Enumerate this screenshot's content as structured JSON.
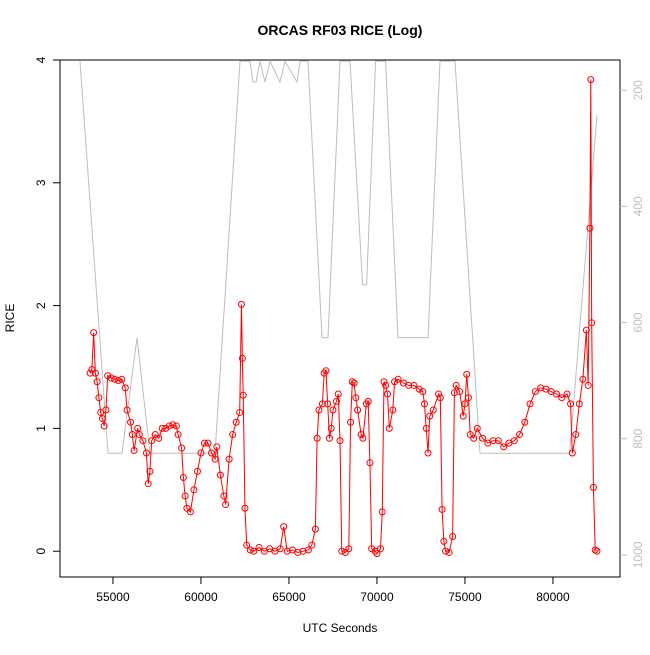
{
  "chart_data": {
    "type": "line",
    "title": "ORCAS RF03 RICE (Log)",
    "xlabel": "UTC Seconds",
    "ylabel": "RICE",
    "xlim": [
      51990,
      83810
    ],
    "ylim": [
      -0.21,
      4.0
    ],
    "y2lim": [
      1038,
      148
    ],
    "xticks": [
      55000,
      60000,
      65000,
      70000,
      75000,
      80000
    ],
    "yticks": [
      0,
      1,
      2,
      3,
      4
    ],
    "y2ticks": [
      200,
      400,
      600,
      800,
      1000
    ],
    "series": [
      {
        "color": "#ff0000",
        "marker": "circle",
        "x": [
          53700,
          53800,
          53900,
          54000,
          54100,
          54200,
          54300,
          54400,
          54500,
          54600,
          54700,
          54900,
          55100,
          55300,
          55500,
          55700,
          55800,
          56000,
          56100,
          56200,
          56400,
          56500,
          56700,
          56900,
          57000,
          57100,
          57200,
          57400,
          57600,
          57800,
          58000,
          58200,
          58400,
          58600,
          58700,
          58900,
          59000,
          59100,
          59200,
          59400,
          59600,
          59800,
          60000,
          60200,
          60400,
          60600,
          60800,
          60900,
          61100,
          61300,
          61400,
          61600,
          61800,
          62000,
          62200,
          62300,
          62350,
          62400,
          62500,
          62600,
          62800,
          63000,
          63300,
          63600,
          63900,
          64200,
          64500,
          64700,
          64900,
          65200,
          65500,
          65800,
          66100,
          66300,
          66500,
          66600,
          66700,
          66900,
          67000,
          67100,
          67200,
          67300,
          67400,
          67500,
          67700,
          67800,
          67900,
          68000,
          68200,
          68400,
          68500,
          68600,
          68700,
          68800,
          68900,
          69100,
          69200,
          69400,
          69500,
          69600,
          69700,
          69900,
          70000,
          70200,
          70300,
          70400,
          70500,
          70600,
          70700,
          70900,
          71000,
          71200,
          71500,
          71800,
          72100,
          72400,
          72600,
          72700,
          72800,
          72900,
          73000,
          73200,
          73500,
          73600,
          73700,
          73800,
          73900,
          74100,
          74300,
          74400,
          74500,
          74700,
          74900,
          75000,
          75100,
          75200,
          75300,
          75500,
          75700,
          76000,
          76300,
          76600,
          76900,
          77200,
          77500,
          77800,
          78100,
          78400,
          78700,
          79000,
          79300,
          79600,
          79900,
          80200,
          80500,
          80800,
          81000,
          81100,
          81300,
          81500,
          81700,
          81900,
          82000,
          82100,
          82150,
          82200,
          82300,
          82400,
          82500
        ],
        "values": [
          1.45,
          1.48,
          1.78,
          1.45,
          1.38,
          1.25,
          1.13,
          1.08,
          1.02,
          1.15,
          1.43,
          1.41,
          1.4,
          1.39,
          1.4,
          1.33,
          1.15,
          1.05,
          0.95,
          0.82,
          1.0,
          0.95,
          0.9,
          0.8,
          0.55,
          0.65,
          0.9,
          0.95,
          0.92,
          1.0,
          1.0,
          1.02,
          1.03,
          1.02,
          0.95,
          0.84,
          0.6,
          0.45,
          0.35,
          0.32,
          0.5,
          0.65,
          0.8,
          0.88,
          0.88,
          0.8,
          0.75,
          0.85,
          0.62,
          0.45,
          0.38,
          0.75,
          0.95,
          1.05,
          1.13,
          2.01,
          1.57,
          1.27,
          0.35,
          0.05,
          0.01,
          0.0,
          0.03,
          0.0,
          0.02,
          0.0,
          0.02,
          0.2,
          0.0,
          0.01,
          -0.01,
          0.0,
          0.01,
          0.05,
          0.18,
          0.92,
          1.15,
          1.2,
          1.45,
          1.47,
          1.2,
          0.92,
          1.0,
          1.15,
          1.22,
          1.28,
          0.9,
          0.0,
          -0.01,
          0.02,
          1.05,
          1.38,
          1.37,
          1.25,
          1.15,
          0.95,
          0.92,
          1.2,
          1.22,
          0.72,
          0.02,
          0.0,
          -0.02,
          0.02,
          0.32,
          1.38,
          1.35,
          1.28,
          1.0,
          1.15,
          1.38,
          1.4,
          1.37,
          1.35,
          1.35,
          1.32,
          1.3,
          1.2,
          1.0,
          0.8,
          1.1,
          1.15,
          1.28,
          1.25,
          0.34,
          0.08,
          0.0,
          -0.01,
          0.12,
          1.29,
          1.35,
          1.3,
          1.1,
          1.2,
          1.44,
          1.25,
          0.95,
          0.92,
          1.0,
          0.92,
          0.88,
          0.9,
          0.9,
          0.85,
          0.88,
          0.9,
          0.95,
          1.05,
          1.2,
          1.3,
          1.33,
          1.32,
          1.3,
          1.28,
          1.25,
          1.28,
          1.2,
          0.8,
          0.95,
          1.2,
          1.4,
          1.8,
          1.35,
          2.63,
          3.84,
          1.86,
          0.52,
          0.01,
          0.0
        ]
      },
      {
        "color": "#bebebe",
        "axis": "y2",
        "x": [
          53126,
          54717,
          55513,
          56365,
          57104,
          60797,
          62218,
          62786,
          62956,
          63127,
          63354,
          63638,
          63922,
          64490,
          64775,
          65456,
          65627,
          66081,
          66877,
          67218,
          67900,
          68468,
          69184,
          69411,
          69922,
          70489,
          71195,
          72900,
          73582,
          74434,
          75854,
          80946,
          82502
        ],
        "values": [
          150,
          825,
          825,
          626,
          825,
          825,
          150,
          150,
          186,
          186,
          150,
          186,
          150,
          186,
          150,
          186,
          150,
          150,
          626,
          626,
          150,
          150,
          535,
          535,
          150,
          150,
          626,
          626,
          150,
          150,
          825,
          825,
          243
        ]
      }
    ]
  }
}
